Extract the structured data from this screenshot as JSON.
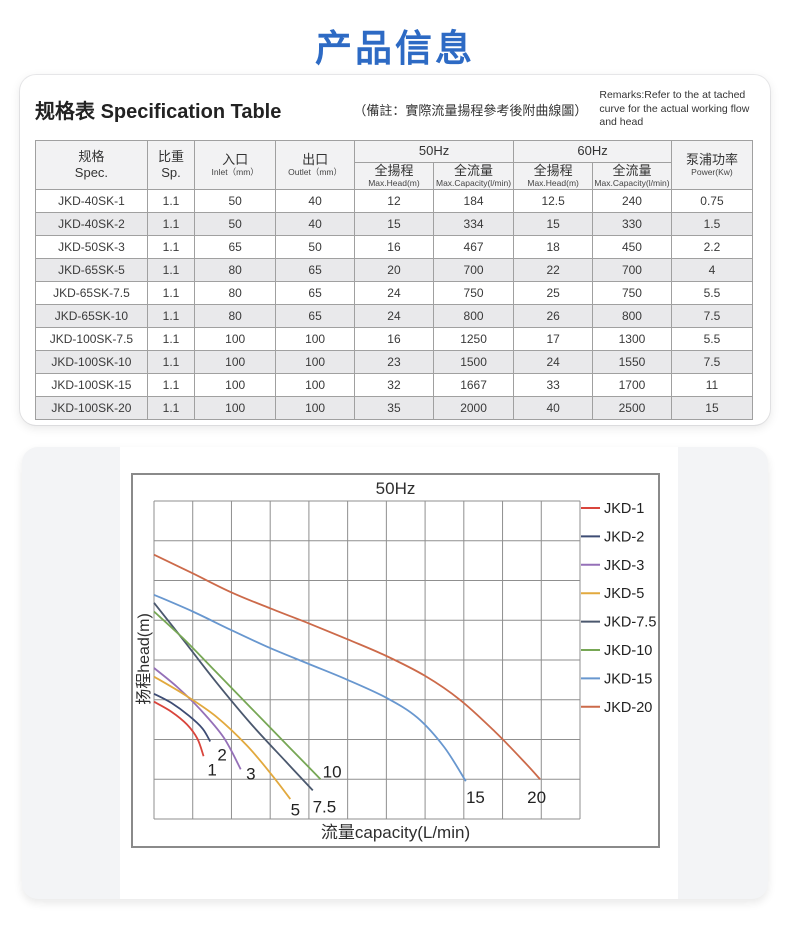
{
  "page": {
    "title": "产品信息"
  },
  "spec_section": {
    "title_zh": "规格表",
    "title_en": "Specification Table",
    "note": "（備註：實際流量揚程參考後附曲線圖）",
    "remarks": "Remarks:Refer to the at tached curve for the actual working flow and head",
    "table": {
      "headers": {
        "spec_zh": "规格",
        "spec_en": "Spec.",
        "sp_zh": "比重",
        "sp_en": "Sp.",
        "inlet_zh": "入口",
        "inlet_en": "Inlet（mm）",
        "outlet_zh": "出口",
        "outlet_en": "Outlet（mm）",
        "hz50": "50Hz",
        "hz60": "60Hz",
        "head_zh": "全揚程",
        "head_en": "Max.Head(m)",
        "cap_zh": "全流量",
        "cap_en": "Max.Capacity(l/min)",
        "power_zh": "泵浦功率",
        "power_en": "Power(Kw)"
      },
      "rows": [
        [
          "JKD-40SK-1",
          "1.1",
          "50",
          "40",
          "12",
          "184",
          "12.5",
          "240",
          "0.75"
        ],
        [
          "JKD-40SK-2",
          "1.1",
          "50",
          "40",
          "15",
          "334",
          "15",
          "330",
          "1.5"
        ],
        [
          "JKD-50SK-3",
          "1.1",
          "65",
          "50",
          "16",
          "467",
          "18",
          "450",
          "2.2"
        ],
        [
          "JKD-65SK-5",
          "1.1",
          "80",
          "65",
          "20",
          "700",
          "22",
          "700",
          "4"
        ],
        [
          "JKD-65SK-7.5",
          "1.1",
          "80",
          "65",
          "24",
          "750",
          "25",
          "750",
          "5.5"
        ],
        [
          "JKD-65SK-10",
          "1.1",
          "80",
          "65",
          "24",
          "800",
          "26",
          "800",
          "7.5"
        ],
        [
          "JKD-100SK-7.5",
          "1.1",
          "100",
          "100",
          "16",
          "1250",
          "17",
          "1300",
          "5.5"
        ],
        [
          "JKD-100SK-10",
          "1.1",
          "100",
          "100",
          "23",
          "1500",
          "24",
          "1550",
          "7.5"
        ],
        [
          "JKD-100SK-15",
          "1.1",
          "100",
          "100",
          "32",
          "1667",
          "33",
          "1700",
          "11"
        ],
        [
          "JKD-100SK-20",
          "1.1",
          "100",
          "100",
          "35",
          "2000",
          "40",
          "2500",
          "15"
        ]
      ]
    }
  },
  "chart_data": {
    "type": "line",
    "title": "50Hz",
    "xlabel": "流量capacity(L/min)",
    "ylabel": "扬程head(m)",
    "grid": {
      "cols": 11,
      "rows": 8,
      "visible": true
    },
    "axes_note": "no numeric tick labels shown; point coordinates below are in grid-cell units (x: 0-11 flow, y: 0-8 head measured downward from top)",
    "legend_position": "right",
    "series": [
      {
        "name": "JKD-1",
        "color": "#d9453c",
        "end_label": "1",
        "points": [
          [
            0,
            5.05
          ],
          [
            0.45,
            5.3
          ],
          [
            0.85,
            5.62
          ],
          [
            1.12,
            5.98
          ],
          [
            1.28,
            6.42
          ]
        ],
        "label_at": [
          1.5,
          6.75
        ]
      },
      {
        "name": "JKD-2",
        "color": "#3d4c74",
        "end_label": "2",
        "points": [
          [
            0,
            4.85
          ],
          [
            0.45,
            5.08
          ],
          [
            0.9,
            5.4
          ],
          [
            1.25,
            5.72
          ],
          [
            1.45,
            6.05
          ]
        ],
        "label_at": [
          1.76,
          6.38
        ]
      },
      {
        "name": "JKD-3",
        "color": "#9570b8",
        "end_label": "3",
        "points": [
          [
            0,
            4.2
          ],
          [
            0.6,
            4.68
          ],
          [
            1.2,
            5.25
          ],
          [
            1.8,
            5.95
          ],
          [
            2.24,
            6.75
          ]
        ],
        "label_at": [
          2.5,
          6.85
        ]
      },
      {
        "name": "JKD-5",
        "color": "#e2a93e",
        "end_label": "5",
        "points": [
          [
            0,
            4.42
          ],
          [
            0.8,
            4.88
          ],
          [
            1.6,
            5.42
          ],
          [
            2.4,
            6.15
          ],
          [
            3.05,
            6.9
          ],
          [
            3.52,
            7.5
          ]
        ],
        "label_at": [
          3.65,
          7.76
        ]
      },
      {
        "name": "JKD-7.5",
        "color": "#4b586e",
        "end_label": "7.5",
        "points": [
          [
            0,
            2.56
          ],
          [
            0.8,
            3.55
          ],
          [
            1.6,
            4.55
          ],
          [
            2.5,
            5.6
          ],
          [
            3.4,
            6.55
          ],
          [
            4.1,
            7.28
          ]
        ],
        "label_at": [
          4.4,
          7.68
        ]
      },
      {
        "name": "JKD-10",
        "color": "#77a755",
        "end_label": "10",
        "points": [
          [
            0,
            2.78
          ],
          [
            0.8,
            3.5
          ],
          [
            1.6,
            4.3
          ],
          [
            2.5,
            5.2
          ],
          [
            3.5,
            6.2
          ],
          [
            4.3,
            7.0
          ]
        ],
        "label_at": [
          4.6,
          6.8
        ]
      },
      {
        "name": "JKD-15",
        "color": "#6897cf",
        "end_label": "15",
        "points": [
          [
            0,
            2.36
          ],
          [
            1,
            2.78
          ],
          [
            2,
            3.25
          ],
          [
            3,
            3.7
          ],
          [
            4,
            4.1
          ],
          [
            5,
            4.5
          ],
          [
            6,
            4.95
          ],
          [
            6.8,
            5.45
          ],
          [
            7.5,
            6.2
          ],
          [
            8.05,
            7.05
          ]
        ],
        "label_at": [
          8.3,
          7.45
        ]
      },
      {
        "name": "JKD-20",
        "color": "#cc6a4a",
        "end_label": "20",
        "points": [
          [
            0,
            1.35
          ],
          [
            1,
            1.82
          ],
          [
            2,
            2.3
          ],
          [
            3,
            2.7
          ],
          [
            4,
            3.08
          ],
          [
            5,
            3.48
          ],
          [
            6,
            3.9
          ],
          [
            7,
            4.4
          ],
          [
            7.9,
            5.0
          ],
          [
            8.8,
            5.8
          ],
          [
            9.55,
            6.55
          ],
          [
            9.97,
            7.0
          ]
        ],
        "label_at": [
          9.88,
          7.45
        ]
      }
    ]
  }
}
